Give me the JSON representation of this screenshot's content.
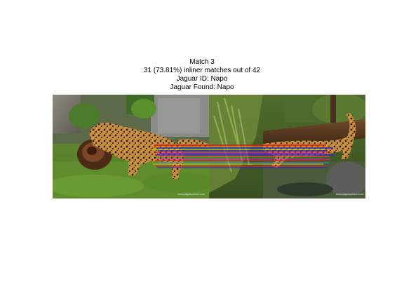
{
  "figure": {
    "title_lines": [
      "Match 3",
      "31 (73.81%) inliner matches out of 42",
      "Jaguar ID: Napo",
      "Jaguar Found: Napo"
    ],
    "left_image": {
      "credit": "www.jaguarphoto.com"
    },
    "right_image": {
      "credit": "www.jaguarphoto.com"
    },
    "match_summary": {
      "match_index": 3,
      "inlier_matches": 31,
      "inlier_percent": 73.81,
      "total_matches": 42,
      "jaguar_id": "Napo",
      "jaguar_found": "Napo"
    },
    "match_line_colors": [
      "#ff0000",
      "#0000ff",
      "#ffff00",
      "#00ff00",
      "#ff00ff",
      "#00ffff",
      "#ff8000",
      "#8000ff"
    ]
  }
}
